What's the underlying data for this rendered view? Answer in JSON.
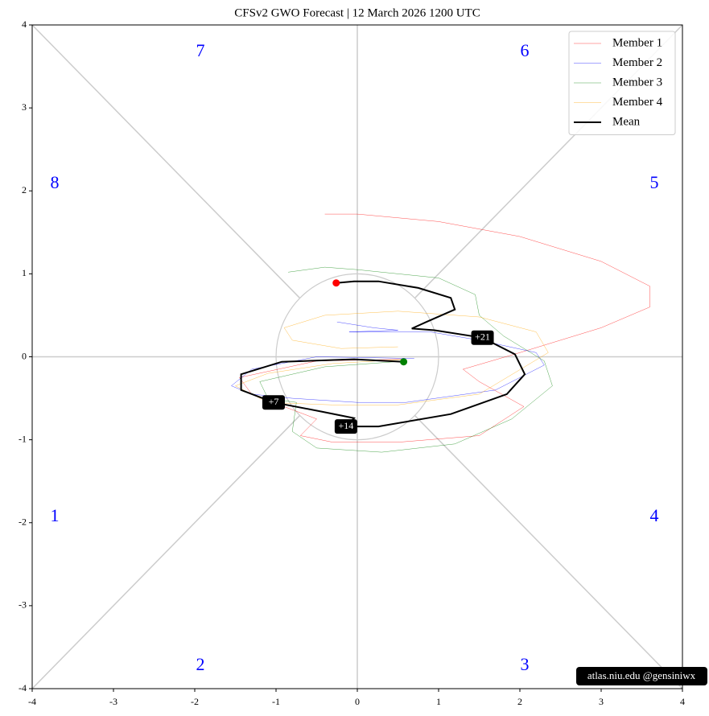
{
  "chart_data": {
    "type": "line",
    "title": "CFSv2 GWO Forecast   |   12  March  2026 1200 UTC",
    "xlim": [
      -4,
      4
    ],
    "ylim": [
      -4,
      4
    ],
    "xticks": [
      -4,
      -3,
      -2,
      -1,
      0,
      1,
      2,
      3,
      4
    ],
    "yticks": [
      -4,
      -3,
      -2,
      -1,
      0,
      1,
      2,
      3,
      4
    ],
    "legend": "upper right",
    "phase_labels": [
      "1",
      "2",
      "3",
      "4",
      "5",
      "6",
      "7",
      "8"
    ],
    "day_labels": [
      "+7",
      "+14",
      "+21"
    ],
    "watermark": "atlas.niu.edu  @gensiniwx",
    "series": [
      {
        "name": "Member 1",
        "color": "#ff0000",
        "width": 0.5,
        "x": [
          0.55,
          -0.5,
          -1.45,
          -1.3,
          -0.9,
          -0.5,
          -0.7,
          -0.3,
          0.5,
          1.5,
          2.05,
          1.5,
          1.3,
          2.0,
          3.0,
          3.6,
          3.6,
          3.0,
          2.0,
          1.0,
          0.0,
          -0.4
        ],
        "y": [
          -0.03,
          -0.05,
          -0.25,
          -0.45,
          -0.6,
          -0.75,
          -0.95,
          -1.03,
          -1.03,
          -0.95,
          -0.6,
          -0.3,
          -0.15,
          0.05,
          0.35,
          0.6,
          0.85,
          1.15,
          1.45,
          1.63,
          1.72,
          1.72
        ]
      },
      {
        "name": "Member 2",
        "color": "#0000ff",
        "width": 0.5,
        "x": [
          0.7,
          -0.5,
          -1.3,
          -1.55,
          -1.3,
          -0.8,
          0.0,
          0.6,
          1.7,
          2.3,
          2.2,
          1.5,
          0.9,
          0.5,
          -0.1,
          0.5,
          0.2,
          -0.25
        ],
        "y": [
          -0.02,
          0.0,
          -0.15,
          -0.35,
          -0.45,
          -0.5,
          -0.55,
          -0.55,
          -0.4,
          -0.1,
          0.05,
          0.2,
          0.3,
          0.3,
          0.3,
          0.32,
          0.35,
          0.42
        ]
      },
      {
        "name": "Member 3",
        "color": "#008000",
        "width": 0.5,
        "x": [
          0.6,
          -0.4,
          -1.2,
          -1.1,
          -0.75,
          -0.8,
          -0.5,
          0.3,
          1.2,
          1.9,
          2.4,
          2.3,
          1.8,
          1.5,
          1.45,
          1.0,
          0.0,
          -0.4,
          -0.85
        ],
        "y": [
          -0.05,
          -0.12,
          -0.3,
          -0.5,
          -0.55,
          -0.9,
          -1.1,
          -1.15,
          -1.05,
          -0.75,
          -0.35,
          -0.05,
          0.25,
          0.5,
          0.75,
          0.95,
          1.05,
          1.08,
          1.02
        ]
      },
      {
        "name": "Member 4",
        "color": "#ffa500",
        "width": 0.5,
        "x": [
          0.6,
          -0.3,
          -1.1,
          -1.5,
          -1.1,
          -0.3,
          0.5,
          1.5,
          2.35,
          2.2,
          1.5,
          0.5,
          -0.4,
          -0.9,
          -0.8,
          -0.2,
          0.5
        ],
        "y": [
          -0.03,
          -0.08,
          -0.2,
          -0.35,
          -0.55,
          -0.58,
          -0.58,
          -0.45,
          0.05,
          0.3,
          0.48,
          0.55,
          0.5,
          0.35,
          0.2,
          0.1,
          0.12
        ]
      },
      {
        "name": "Mean",
        "color": "#000000",
        "width": 2,
        "x": [
          0.57,
          -0.04,
          -0.93,
          -1.43,
          -1.43,
          -1.03,
          -0.44,
          -0.04,
          -0.14,
          0.26,
          1.15,
          1.84,
          2.06,
          1.94,
          1.54,
          0.95,
          0.67,
          0.85,
          1.2,
          1.15,
          0.75,
          0.26,
          -0.04,
          -0.26
        ],
        "y": [
          -0.06,
          -0.03,
          -0.06,
          -0.21,
          -0.4,
          -0.55,
          -0.66,
          -0.74,
          -0.84,
          -0.84,
          -0.69,
          -0.45,
          -0.21,
          0.03,
          0.23,
          0.32,
          0.34,
          0.42,
          0.57,
          0.71,
          0.83,
          0.91,
          0.91,
          0.89
        ]
      }
    ]
  }
}
